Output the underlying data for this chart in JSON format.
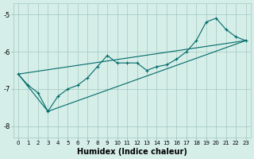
{
  "xlabel": "Humidex (Indice chaleur)",
  "ylabel": "",
  "background_color": "#d6eee8",
  "line_color": "#006a6a",
  "xlim": [
    -0.5,
    23.5
  ],
  "ylim": [
    -8.3,
    -4.7
  ],
  "yticks": [
    -8,
    -7,
    -6,
    -5
  ],
  "xticks": [
    0,
    1,
    2,
    3,
    4,
    5,
    6,
    7,
    8,
    9,
    10,
    11,
    12,
    13,
    14,
    15,
    16,
    17,
    18,
    19,
    20,
    21,
    22,
    23
  ],
  "series1_x": [
    0,
    1,
    2,
    3,
    4,
    5,
    6,
    7,
    8,
    9,
    10,
    11,
    12,
    13,
    14,
    15,
    16,
    17,
    18,
    19,
    20,
    21,
    22,
    23
  ],
  "series1_y": [
    -6.6,
    -6.9,
    -7.1,
    -7.6,
    -7.2,
    -7.0,
    -6.9,
    -6.7,
    -6.4,
    -6.1,
    -6.3,
    -6.3,
    -6.3,
    -6.5,
    -6.4,
    -6.35,
    -6.2,
    -6.0,
    -5.7,
    -5.2,
    -5.1,
    -5.4,
    -5.6,
    -5.7
  ],
  "line1_x": [
    0,
    23
  ],
  "line1_y": [
    -6.6,
    -5.7
  ],
  "line2_x": [
    0,
    3,
    23
  ],
  "line2_y": [
    -6.6,
    -7.6,
    -5.7
  ]
}
